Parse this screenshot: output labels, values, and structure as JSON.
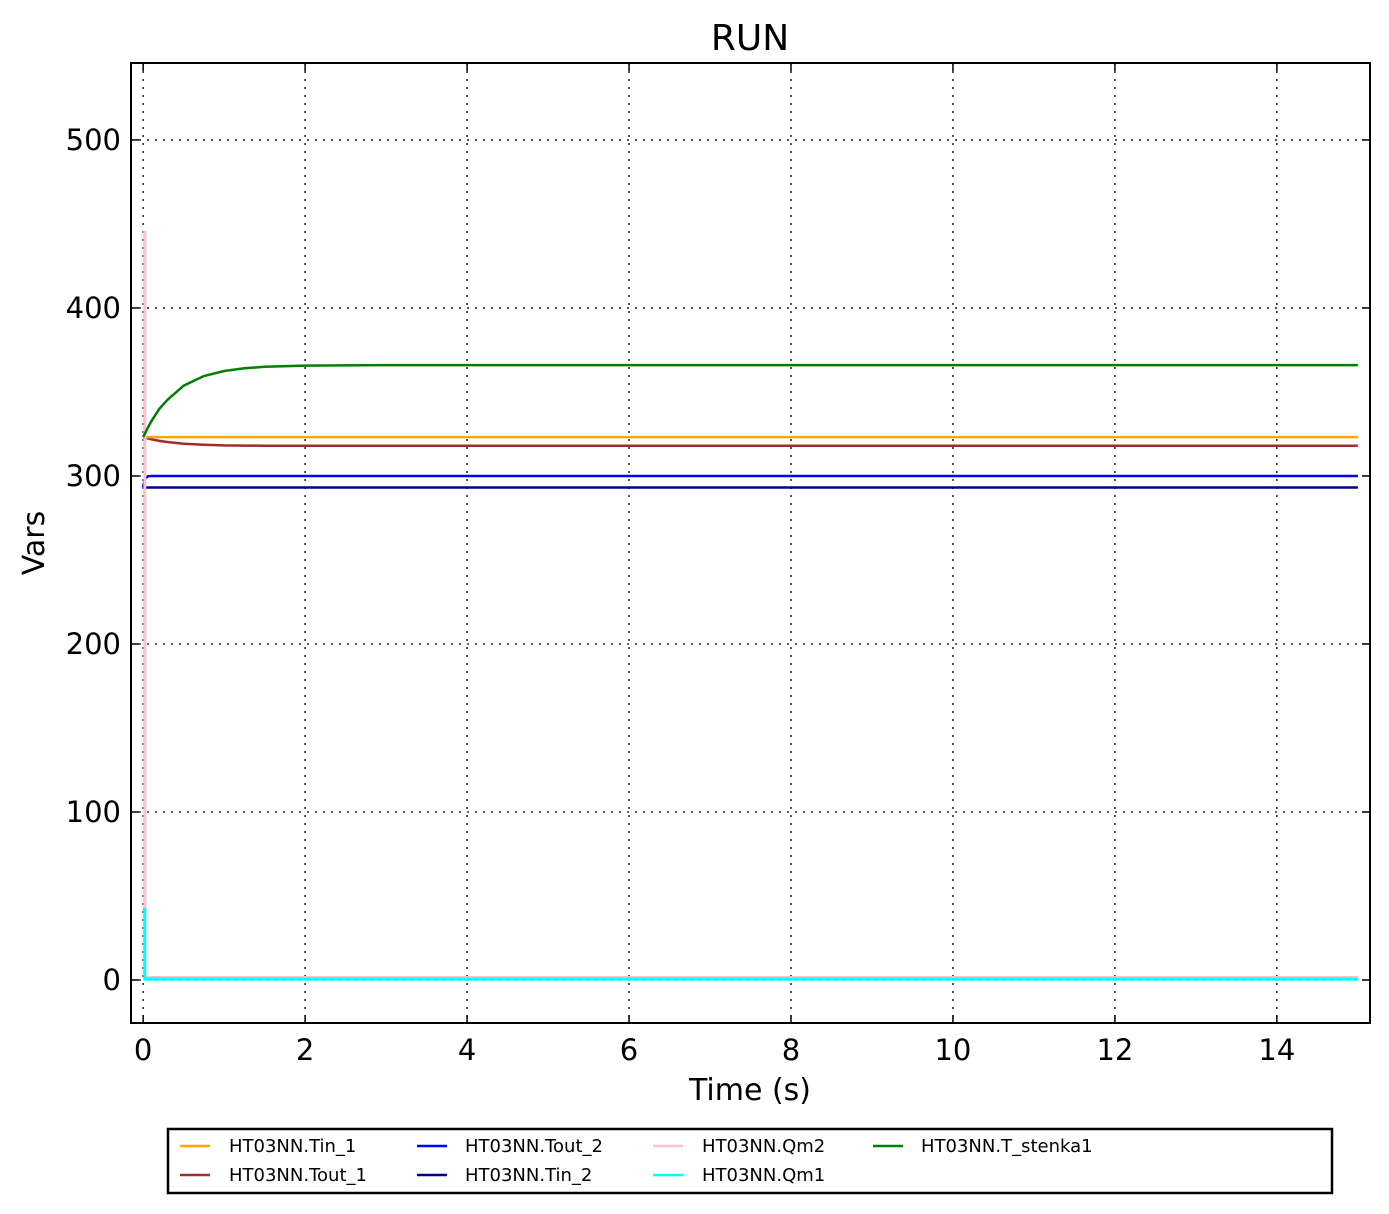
{
  "chart_data": {
    "type": "line",
    "title": "RUN",
    "xlabel": "Time (s)",
    "ylabel": "Vars",
    "xlim": [
      -0.15,
      15.15
    ],
    "ylim": [
      -25.6,
      545.8
    ],
    "grid": true,
    "legend_placement": "bottom-outside",
    "xticks": [
      0,
      2,
      4,
      6,
      8,
      10,
      12,
      14
    ],
    "yticks": [
      0,
      100,
      200,
      300,
      400,
      500
    ],
    "series": [
      {
        "name": "HT03NN.Tin_1",
        "color": "#ffa500",
        "x": [
          0,
          15
        ],
        "y": [
          323.15,
          323.15
        ]
      },
      {
        "name": "HT03NN.Tout_1",
        "color": "#a52a2a",
        "x": [
          0,
          0.02,
          0.05,
          0.1,
          0.2,
          0.3,
          0.5,
          0.75,
          1,
          1.25,
          1.5,
          2,
          3,
          15
        ],
        "y": [
          323.15,
          322.9,
          322.5,
          321.8,
          320.9,
          320.2,
          319.2,
          318.6,
          318.2,
          318.1,
          318.0,
          317.95,
          317.95,
          317.95
        ]
      },
      {
        "name": "HT03NN.Tout_2",
        "color": "#0000ff",
        "x": [
          0,
          0.01,
          0.03,
          0.06,
          0.1,
          15
        ],
        "y": [
          293.15,
          296,
          298.8,
          299.8,
          300,
          300
        ]
      },
      {
        "name": "HT03NN.Tin_2",
        "color": "#00008b",
        "x": [
          0,
          15
        ],
        "y": [
          293.15,
          293.15
        ]
      },
      {
        "name": "HT03NN.Qm2",
        "color": "#ffc0cb",
        "x": [
          0,
          0.0001,
          0.02,
          0.021,
          15
        ],
        "y": [
          445,
          445,
          445,
          1.5,
          1.5
        ]
      },
      {
        "name": "HT03NN.Qm1",
        "color": "#00ffff",
        "x": [
          0,
          0.0001,
          0.02,
          0.021,
          15
        ],
        "y": [
          42,
          42,
          42,
          0.5,
          0.5
        ]
      },
      {
        "name": "HT03NN.T_stenka1",
        "color": "#008000",
        "x": [
          0,
          0.02,
          0.05,
          0.1,
          0.2,
          0.3,
          0.5,
          0.75,
          1,
          1.25,
          1.5,
          2,
          3,
          5,
          15
        ],
        "y": [
          323.15,
          325.1,
          328.0,
          332.5,
          339.9,
          345.3,
          353.7,
          359.5,
          362.5,
          364.1,
          365.0,
          365.7,
          366,
          366,
          366
        ]
      }
    ]
  }
}
